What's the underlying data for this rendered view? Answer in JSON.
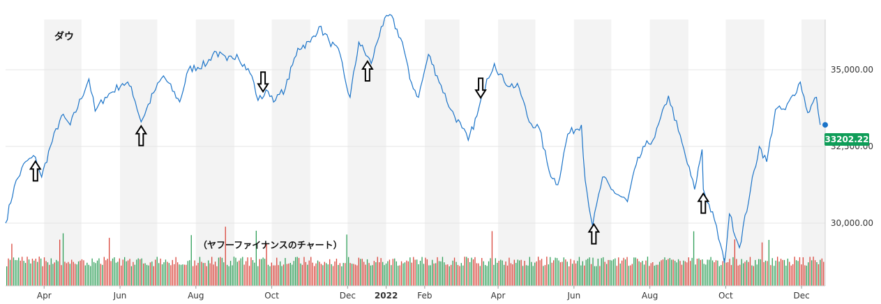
{
  "colors": {
    "line": "#1a73c8",
    "band": "#f3f3f3",
    "grid": "#e6e6e6",
    "vol_up": "#2e9e57",
    "vol_down": "#d9443a",
    "badge": "#0f9d58",
    "axis_text": "#333333"
  },
  "chart_data": {
    "type": "line",
    "title": "ダウ",
    "caption": "（ヤフーファイナンスのチャート）",
    "last_value_label": "33202.22",
    "x_range": [
      "2021-03-01",
      "2022-12-20"
    ],
    "ylim": [
      28500,
      36900
    ],
    "y_ticks": [
      {
        "value": 30000,
        "label": "30,000.00"
      },
      {
        "value": 32500,
        "label": "32,500.00"
      },
      {
        "value": 35000,
        "label": "35,000.00"
      }
    ],
    "x_ticks": [
      {
        "date": "2021-04-01",
        "label": "Apr",
        "bold": false
      },
      {
        "date": "2021-06-01",
        "label": "Jun",
        "bold": false
      },
      {
        "date": "2021-08-01",
        "label": "Aug",
        "bold": false
      },
      {
        "date": "2021-10-01",
        "label": "Oct",
        "bold": false
      },
      {
        "date": "2021-12-01",
        "label": "Dec",
        "bold": false
      },
      {
        "date": "2022-01-01",
        "label": "2022",
        "bold": true
      },
      {
        "date": "2022-02-01",
        "label": "Feb",
        "bold": false
      },
      {
        "date": "2022-04-01",
        "label": "Apr",
        "bold": false
      },
      {
        "date": "2022-06-01",
        "label": "Jun",
        "bold": false
      },
      {
        "date": "2022-08-01",
        "label": "Aug",
        "bold": false
      },
      {
        "date": "2022-10-01",
        "label": "Oct",
        "bold": false
      },
      {
        "date": "2022-12-01",
        "label": "Dec",
        "bold": false
      }
    ],
    "series": [
      {
        "values": [
          {
            "x": "2021-03-01",
            "y": 30000
          },
          {
            "x": "2021-03-08",
            "y": 31200
          },
          {
            "x": "2021-03-17",
            "y": 32000
          },
          {
            "x": "2021-03-25",
            "y": 32150
          },
          {
            "x": "2021-03-30",
            "y": 31500
          },
          {
            "x": "2021-04-06",
            "y": 32500
          },
          {
            "x": "2021-04-15",
            "y": 33500
          },
          {
            "x": "2021-04-22",
            "y": 33200
          },
          {
            "x": "2021-05-07",
            "y": 34700
          },
          {
            "x": "2021-05-12",
            "y": 33650
          },
          {
            "x": "2021-05-20",
            "y": 34100
          },
          {
            "x": "2021-06-03",
            "y": 34550
          },
          {
            "x": "2021-06-10",
            "y": 34450
          },
          {
            "x": "2021-06-18",
            "y": 33300
          },
          {
            "x": "2021-06-28",
            "y": 34250
          },
          {
            "x": "2021-07-06",
            "y": 34800
          },
          {
            "x": "2021-07-19",
            "y": 33950
          },
          {
            "x": "2021-07-26",
            "y": 35000
          },
          {
            "x": "2021-08-10",
            "y": 35200
          },
          {
            "x": "2021-08-16",
            "y": 35600
          },
          {
            "x": "2021-08-26",
            "y": 35300
          },
          {
            "x": "2021-09-03",
            "y": 35500
          },
          {
            "x": "2021-09-15",
            "y": 34800
          },
          {
            "x": "2021-09-20",
            "y": 34000
          },
          {
            "x": "2021-09-28",
            "y": 34300
          },
          {
            "x": "2021-10-04",
            "y": 34000
          },
          {
            "x": "2021-10-12",
            "y": 34400
          },
          {
            "x": "2021-10-22",
            "y": 35700
          },
          {
            "x": "2021-11-01",
            "y": 35900
          },
          {
            "x": "2021-11-08",
            "y": 36400
          },
          {
            "x": "2021-11-16",
            "y": 35950
          },
          {
            "x": "2021-11-25",
            "y": 35500
          },
          {
            "x": "2021-11-30",
            "y": 34500
          },
          {
            "x": "2021-12-03",
            "y": 34100
          },
          {
            "x": "2021-12-10",
            "y": 35900
          },
          {
            "x": "2021-12-20",
            "y": 35200
          },
          {
            "x": "2021-12-28",
            "y": 36400
          },
          {
            "x": "2022-01-04",
            "y": 36800
          },
          {
            "x": "2022-01-14",
            "y": 35900
          },
          {
            "x": "2022-01-20",
            "y": 34700
          },
          {
            "x": "2022-01-27",
            "y": 34100
          },
          {
            "x": "2022-02-04",
            "y": 35500
          },
          {
            "x": "2022-02-11",
            "y": 34800
          },
          {
            "x": "2022-02-22",
            "y": 33700
          },
          {
            "x": "2022-03-03",
            "y": 33100
          },
          {
            "x": "2022-03-08",
            "y": 32700
          },
          {
            "x": "2022-03-15",
            "y": 33500
          },
          {
            "x": "2022-03-23",
            "y": 34700
          },
          {
            "x": "2022-03-29",
            "y": 35200
          },
          {
            "x": "2022-04-06",
            "y": 34600
          },
          {
            "x": "2022-04-18",
            "y": 34400
          },
          {
            "x": "2022-04-26",
            "y": 33300
          },
          {
            "x": "2022-05-04",
            "y": 33100
          },
          {
            "x": "2022-05-12",
            "y": 31700
          },
          {
            "x": "2022-05-19",
            "y": 31250
          },
          {
            "x": "2022-05-27",
            "y": 32900
          },
          {
            "x": "2022-06-07",
            "y": 33200
          },
          {
            "x": "2022-06-10",
            "y": 31400
          },
          {
            "x": "2022-06-16",
            "y": 29900
          },
          {
            "x": "2022-06-24",
            "y": 31500
          },
          {
            "x": "2022-07-01",
            "y": 31100
          },
          {
            "x": "2022-07-14",
            "y": 30700
          },
          {
            "x": "2022-07-21",
            "y": 31900
          },
          {
            "x": "2022-07-28",
            "y": 32500
          },
          {
            "x": "2022-08-05",
            "y": 32800
          },
          {
            "x": "2022-08-16",
            "y": 34150
          },
          {
            "x": "2022-08-24",
            "y": 33000
          },
          {
            "x": "2022-09-06",
            "y": 31100
          },
          {
            "x": "2022-09-12",
            "y": 32400
          },
          {
            "x": "2022-09-13",
            "y": 31100
          },
          {
            "x": "2022-09-22",
            "y": 30100
          },
          {
            "x": "2022-09-30",
            "y": 28700
          },
          {
            "x": "2022-10-04",
            "y": 30300
          },
          {
            "x": "2022-10-12",
            "y": 29200
          },
          {
            "x": "2022-10-21",
            "y": 31100
          },
          {
            "x": "2022-10-28",
            "y": 32500
          },
          {
            "x": "2022-11-03",
            "y": 32000
          },
          {
            "x": "2022-11-10",
            "y": 33700
          },
          {
            "x": "2022-11-18",
            "y": 33700
          },
          {
            "x": "2022-11-30",
            "y": 34600
          },
          {
            "x": "2022-12-06",
            "y": 33600
          },
          {
            "x": "2022-12-13",
            "y": 34100
          },
          {
            "x": "2022-12-16",
            "y": 33202.22
          }
        ]
      }
    ],
    "annotations": [
      {
        "x": "2021-03-25",
        "direction": "up"
      },
      {
        "x": "2021-06-18",
        "direction": "up"
      },
      {
        "x": "2021-09-24",
        "direction": "down"
      },
      {
        "x": "2021-12-17",
        "direction": "up"
      },
      {
        "x": "2022-03-18",
        "direction": "down"
      },
      {
        "x": "2022-06-17",
        "direction": "up"
      },
      {
        "x": "2022-09-13",
        "direction": "up"
      }
    ]
  }
}
